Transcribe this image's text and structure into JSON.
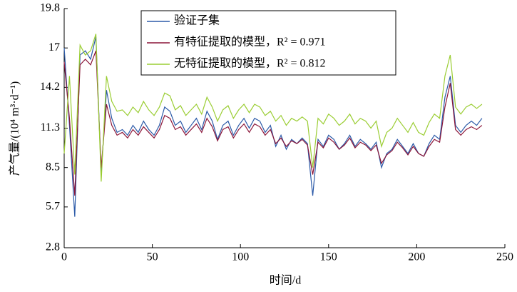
{
  "chart_data": {
    "type": "line",
    "xlabel": "时间/d",
    "ylabel": "产气量/(10⁴ m³·d⁻¹)",
    "x": [
      0,
      3,
      6,
      9,
      12,
      15,
      18,
      21,
      24,
      27,
      30,
      33,
      36,
      39,
      42,
      45,
      48,
      51,
      54,
      57,
      60,
      63,
      66,
      69,
      72,
      75,
      78,
      81,
      84,
      87,
      90,
      93,
      96,
      99,
      102,
      105,
      108,
      111,
      114,
      117,
      120,
      123,
      126,
      129,
      132,
      135,
      138,
      141,
      144,
      147,
      150,
      153,
      156,
      159,
      162,
      165,
      168,
      171,
      174,
      177,
      180,
      183,
      186,
      189,
      192,
      195,
      198,
      201,
      204,
      207,
      210,
      213,
      216,
      219,
      222,
      225,
      228,
      231,
      234,
      237
    ],
    "series": [
      {
        "name": "验证子集",
        "color": "#2b5aa8",
        "values": [
          17.0,
          11.5,
          5.0,
          16.5,
          16.8,
          16.2,
          17.8,
          8.0,
          14.0,
          12.0,
          11.0,
          11.2,
          10.8,
          11.5,
          11.0,
          11.8,
          11.2,
          10.8,
          11.5,
          12.8,
          12.5,
          11.5,
          11.8,
          11.0,
          11.5,
          12.0,
          11.2,
          12.5,
          11.8,
          10.5,
          11.5,
          11.8,
          10.8,
          11.5,
          12.0,
          11.3,
          12.0,
          11.8,
          11.0,
          11.5,
          10.0,
          10.8,
          9.8,
          10.5,
          10.2,
          10.6,
          10.2,
          6.5,
          10.5,
          10.0,
          10.8,
          10.5,
          9.8,
          10.2,
          10.8,
          10.0,
          10.5,
          10.2,
          9.8,
          10.3,
          8.5,
          9.5,
          9.8,
          10.5,
          10.0,
          9.5,
          10.2,
          9.5,
          9.3,
          10.2,
          10.8,
          10.5,
          13.5,
          15.0,
          11.5,
          11.0,
          11.5,
          11.8,
          11.5,
          12.0
        ]
      },
      {
        "name": "有特征提取的模型，R² = 0.971",
        "color": "#8b1538",
        "values": [
          16.0,
          12.0,
          6.5,
          15.8,
          16.2,
          15.8,
          16.8,
          8.5,
          13.0,
          11.5,
          10.8,
          11.0,
          10.6,
          11.2,
          10.8,
          11.4,
          11.0,
          10.6,
          11.2,
          12.2,
          12.0,
          11.2,
          11.4,
          10.8,
          11.2,
          11.6,
          11.0,
          12.0,
          11.4,
          10.4,
          11.2,
          11.4,
          10.6,
          11.2,
          11.6,
          11.0,
          11.6,
          11.4,
          10.8,
          11.2,
          10.2,
          10.6,
          10.0,
          10.4,
          10.2,
          10.5,
          10.1,
          8.0,
          10.3,
          9.9,
          10.6,
          10.3,
          9.8,
          10.1,
          10.6,
          9.9,
          10.3,
          10.1,
          9.7,
          10.1,
          8.8,
          9.4,
          9.7,
          10.3,
          9.9,
          9.4,
          10.0,
          9.5,
          9.3,
          10.0,
          10.5,
          10.3,
          12.8,
          14.5,
          11.2,
          10.8,
          11.2,
          11.4,
          11.2,
          11.5
        ]
      },
      {
        "name": "无特征提取的模型，R² = 0.812",
        "color": "#9acd32",
        "values": [
          9.5,
          15.0,
          8.0,
          17.2,
          16.5,
          16.8,
          18.0,
          7.5,
          15.0,
          13.2,
          12.5,
          12.6,
          12.2,
          12.8,
          12.4,
          13.2,
          12.6,
          12.2,
          12.8,
          13.8,
          13.6,
          12.6,
          12.9,
          12.2,
          12.6,
          13.0,
          12.3,
          13.5,
          12.8,
          11.8,
          12.6,
          12.9,
          12.0,
          12.6,
          13.0,
          12.4,
          13.0,
          12.8,
          12.2,
          12.5,
          11.8,
          12.2,
          11.5,
          12.0,
          11.8,
          12.1,
          11.8,
          8.5,
          12.0,
          11.6,
          12.3,
          12.0,
          11.5,
          11.8,
          12.3,
          11.6,
          12.0,
          11.8,
          11.3,
          11.8,
          10.0,
          11.0,
          11.3,
          12.0,
          11.5,
          11.0,
          11.7,
          11.0,
          10.8,
          11.7,
          12.3,
          12.0,
          15.0,
          16.5,
          12.8,
          12.3,
          12.8,
          13.0,
          12.7,
          13.0
        ]
      }
    ],
    "xlim": [
      0,
      250
    ],
    "xticks": [
      0,
      50,
      100,
      150,
      200,
      250
    ],
    "ylim": [
      2.8,
      19.8
    ],
    "yticks": [
      2.8,
      5.7,
      8.5,
      11.3,
      14.2,
      17.0,
      19.8
    ],
    "legend": "upper center"
  }
}
